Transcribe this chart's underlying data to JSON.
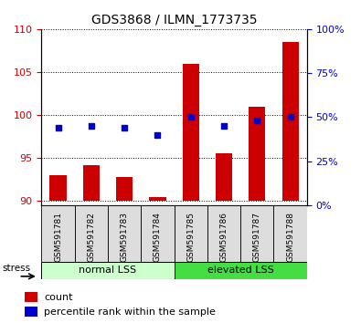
{
  "title": "GDS3868 / ILMN_1773735",
  "categories": [
    "GSM591781",
    "GSM591782",
    "GSM591783",
    "GSM591784",
    "GSM591785",
    "GSM591786",
    "GSM591787",
    "GSM591788"
  ],
  "count_values": [
    93.0,
    94.2,
    92.8,
    90.4,
    106.0,
    95.5,
    101.0,
    108.5
  ],
  "percentile_values": [
    44,
    45,
    44,
    40,
    50,
    45,
    48,
    50
  ],
  "bar_color": "#cc0000",
  "dot_color": "#0000cc",
  "ylim_left": [
    89.5,
    110
  ],
  "ylim_right": [
    0,
    100
  ],
  "yticks_left": [
    90,
    95,
    100,
    105,
    110
  ],
  "yticks_right": [
    0,
    25,
    50,
    75,
    100
  ],
  "group_labels": [
    "normal LSS",
    "elevated LSS"
  ],
  "group_colors": [
    "#ccffcc",
    "#44dd44"
  ],
  "stress_label": "stress",
  "legend_count": "count",
  "legend_pct": "percentile rank within the sample",
  "bar_bottom": 90,
  "title_fontsize": 10,
  "tick_fontsize": 8,
  "label_fontsize": 9
}
